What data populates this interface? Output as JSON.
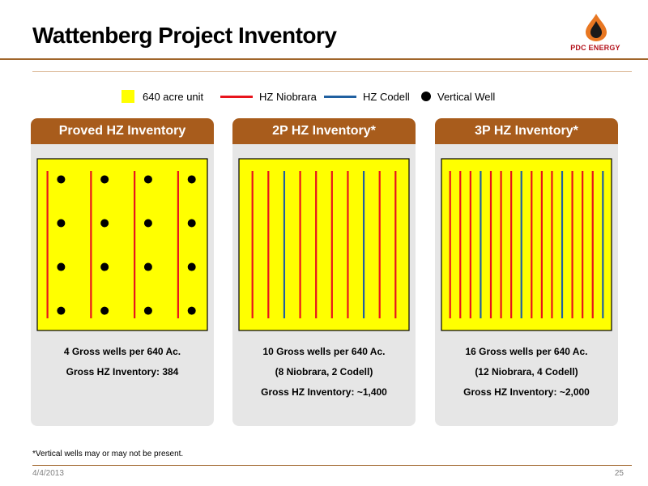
{
  "title": "Wattenberg Project Inventory",
  "logo": {
    "text": "PDC ENERGY"
  },
  "colors": {
    "unit": "#ffff00",
    "niobrara": "#e8141c",
    "codell": "#2060a0",
    "vertical": "#000000",
    "header": "#a85c1c"
  },
  "legend": [
    {
      "label": "640 acre unit",
      "type": "square"
    },
    {
      "label": "HZ Niobrara",
      "type": "line-red"
    },
    {
      "label": "HZ Codell",
      "type": "line-blue"
    },
    {
      "label": "Vertical Well",
      "type": "dot"
    }
  ],
  "panels": [
    {
      "header": "Proved HZ Inventory",
      "lines": [
        "4 Gross wells per 640 Ac.",
        "Gross HZ Inventory: 384"
      ],
      "wells": [
        "N",
        "N",
        "N",
        "N"
      ],
      "vertical_grid": [
        4,
        4
      ]
    },
    {
      "header": "2P HZ Inventory*",
      "lines": [
        "10 Gross wells per 640 Ac.",
        "(8 Niobrara, 2 Codell)",
        "Gross HZ Inventory: ~1,400"
      ],
      "wells": [
        "N",
        "N",
        "C",
        "N",
        "N",
        "N",
        "N",
        "C",
        "N",
        "N"
      ],
      "vertical_grid": [
        0,
        0
      ]
    },
    {
      "header": "3P HZ Inventory*",
      "lines": [
        "16 Gross wells per 640 Ac.",
        "(12 Niobrara, 4 Codell)",
        "Gross HZ Inventory: ~2,000"
      ],
      "wells": [
        "N",
        "N",
        "N",
        "C",
        "N",
        "N",
        "N",
        "C",
        "N",
        "N",
        "N",
        "C",
        "N",
        "N",
        "N",
        "C"
      ],
      "vertical_grid": [
        0,
        0
      ]
    }
  ],
  "footnote": "*Vertical wells may or may not be present.",
  "date": "4/4/2013",
  "page": "25"
}
